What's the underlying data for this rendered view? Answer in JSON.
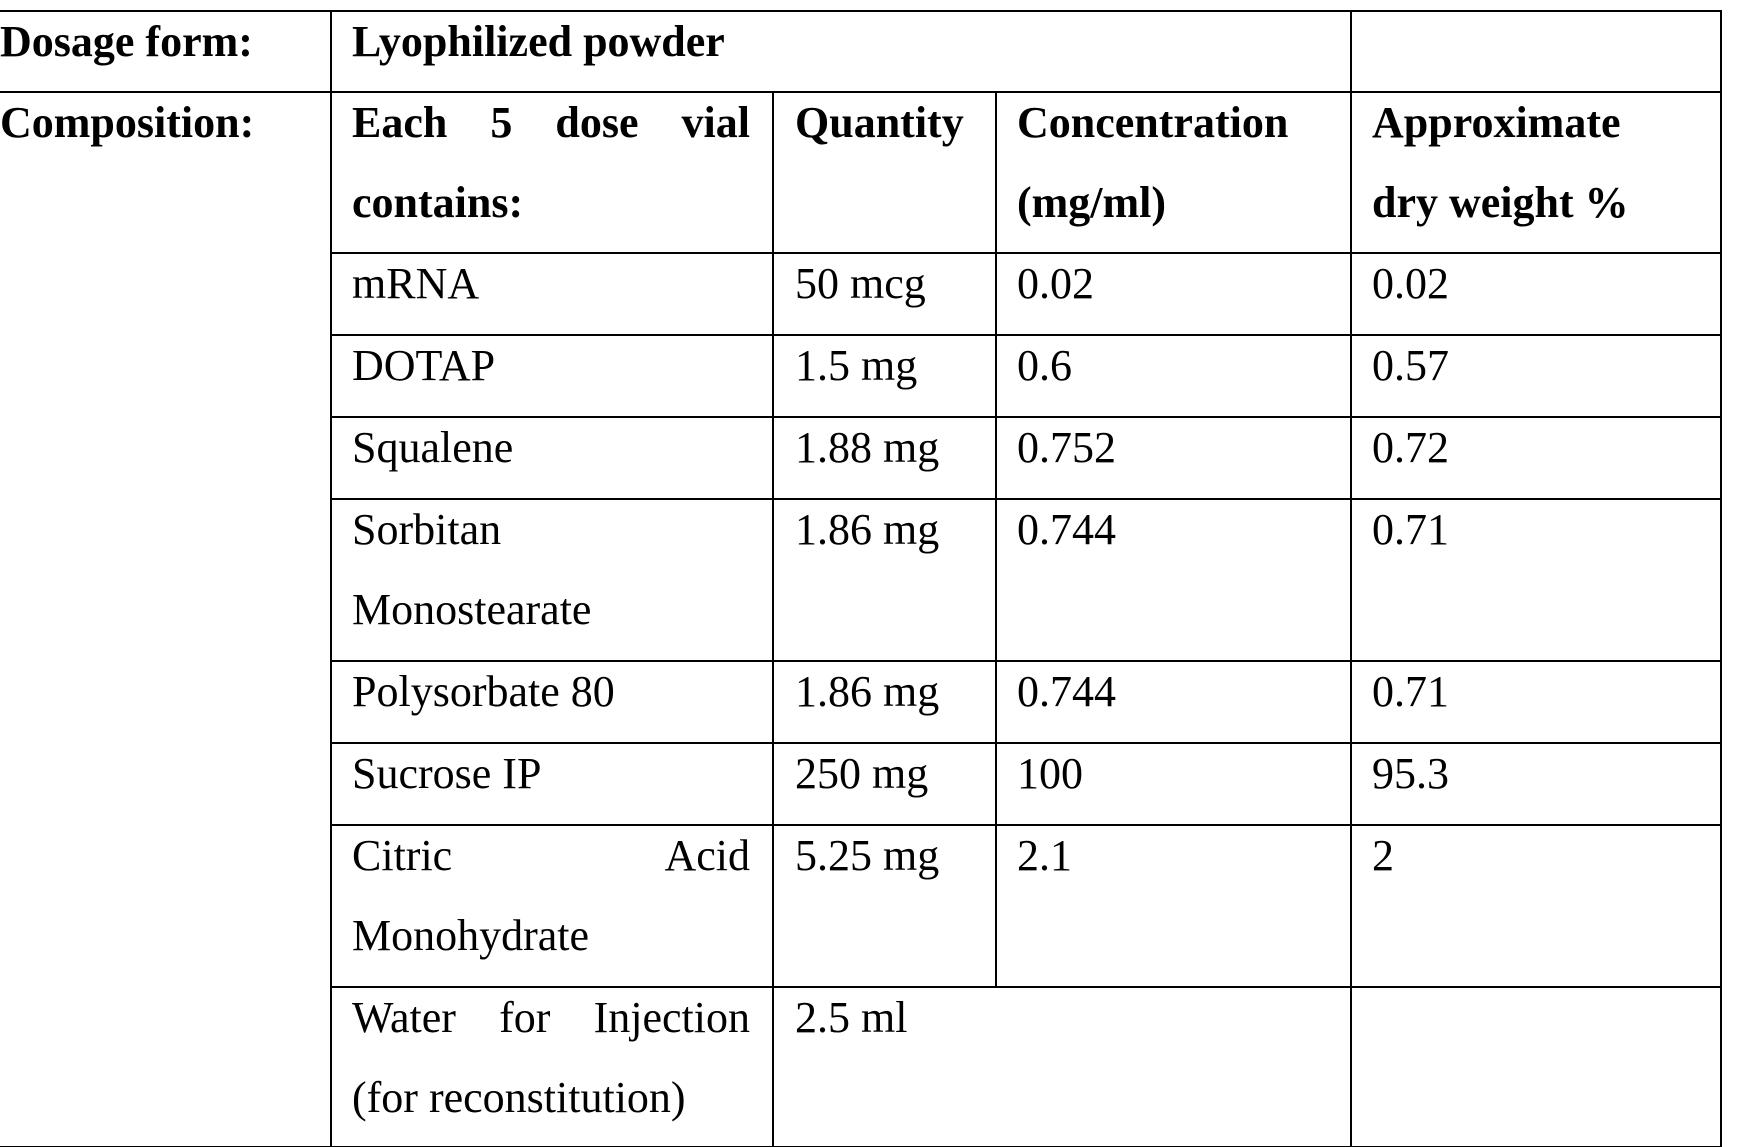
{
  "dosage_form": {
    "label": "Dosage form:",
    "value": "Lyophilized powder"
  },
  "composition": {
    "label": "Composition:",
    "headers": {
      "ingredient_line1": "Each 5 dose vial",
      "ingredient_line2": "contains:",
      "quantity": "Quantity",
      "concentration_line1": "Concentration",
      "concentration_line2": "(mg/ml)",
      "dry_weight_line1": "Approximate",
      "dry_weight_line2": "dry weight %"
    },
    "rows": [
      {
        "ingredient": "mRNA",
        "quantity": "50 mcg",
        "concentration": "0.02",
        "dry_weight": "0.02"
      },
      {
        "ingredient": "DOTAP",
        "quantity": "1.5 mg",
        "concentration": "0.6",
        "dry_weight": "0.57"
      },
      {
        "ingredient": "Squalene",
        "quantity": "1.88 mg",
        "concentration": "0.752",
        "dry_weight": "0.72"
      },
      {
        "ingredient_line1": "Sorbitan",
        "ingredient_line2": "Monostearate",
        "quantity": "1.86 mg",
        "concentration": "0.744",
        "dry_weight": "0.71"
      },
      {
        "ingredient": "Polysorbate 80",
        "quantity": "1.86 mg",
        "concentration": "0.744",
        "dry_weight": "0.71"
      },
      {
        "ingredient": "Sucrose IP",
        "quantity": "250 mg",
        "concentration": "100",
        "dry_weight": "95.3"
      },
      {
        "ingredient_line1": "Citric Acid",
        "ingredient_line2": "Monohydrate",
        "quantity": "5.25 mg",
        "concentration": "2.1",
        "dry_weight": "2"
      },
      {
        "ingredient_line1": "Water for Injection",
        "ingredient_line2": "(for reconstitution)",
        "quantity": "2.5 ml"
      }
    ]
  }
}
